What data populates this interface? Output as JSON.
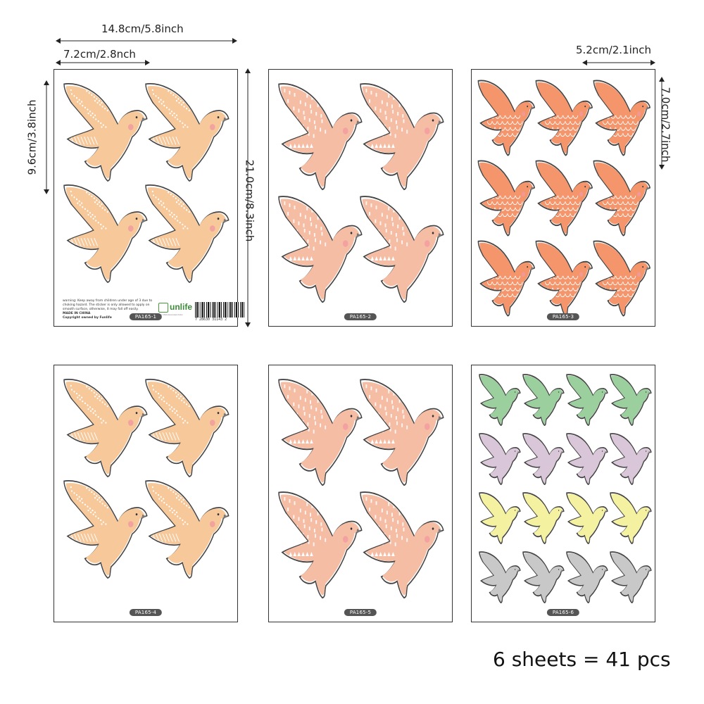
{
  "dimensions": {
    "sheet_width": "14.8cm/5.8inch",
    "large_bird_width": "7.2cm/2.8nch",
    "large_bird_height": "9.6cm/3.8inch",
    "sheet_height": "21.0cm/8.3inch",
    "small_bird_width": "5.2cm/2.1inch",
    "small_bird_height": "7.0cm/2.7inch"
  },
  "sheets": [
    {
      "label": "PA165-1",
      "color": "#f6c89a",
      "pattern": "dots"
    },
    {
      "label": "PA165-2",
      "color": "#f6bda5",
      "pattern": "dashes"
    },
    {
      "label": "PA165-3",
      "color": "#f4956c",
      "pattern": "scales"
    },
    {
      "label": "PA165-4",
      "color": "#f6c89a",
      "pattern": "dots"
    },
    {
      "label": "PA165-5",
      "color": "#f6bda5",
      "pattern": "dashes"
    },
    {
      "label": "PA165-6",
      "colors": [
        "#9ccf9e",
        "#d9c6d8",
        "#f4f2a0",
        "#c8c8c8"
      ],
      "pattern": "plain"
    }
  ],
  "fine_print": {
    "warning": "warning: Keep away from children under age of 3 due to choking hazard. The sticker is only allowed to apply on smooth surface, otherwise, it may fall off easily.",
    "origin": "MADE IN CHINA",
    "copyright": "Copyright owned by Funlife"
  },
  "brand": {
    "name": "unlife",
    "tagline": "Your Well-decorated Artist"
  },
  "barcode_number": "7 28630 31143 2",
  "summary": "6 sheets = 41 pcs"
}
